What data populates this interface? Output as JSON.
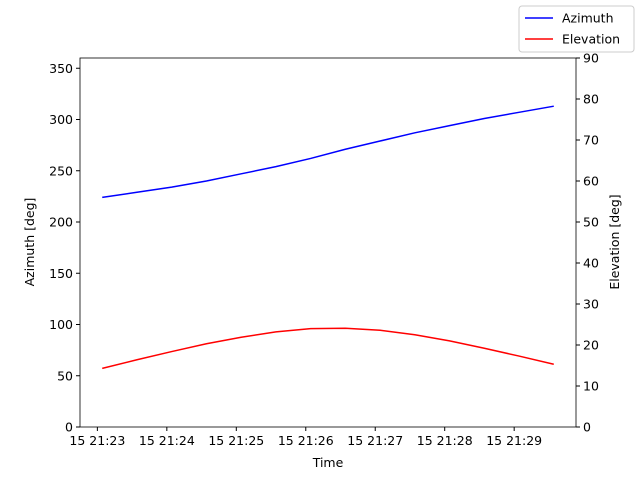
{
  "chart_data": {
    "type": "line",
    "x_label": "Time",
    "y_label": "Azimuth [deg]",
    "y2_label": "Elevation [deg]",
    "x": [
      23.07,
      23.57,
      24.07,
      24.57,
      25.07,
      25.57,
      26.07,
      26.57,
      27.07,
      27.57,
      28.07,
      28.57,
      29.07,
      29.57
    ],
    "series": [
      {
        "name": "Azimuth",
        "color": "#0000ff",
        "values": [
          224,
          229,
          234,
          240,
          247,
          254,
          262,
          271,
          279,
          287,
          294,
          301,
          307,
          313
        ]
      },
      {
        "name": "Elevation",
        "color": "#ff0000",
        "axis": "y2",
        "values": [
          14.3,
          16.4,
          18.4,
          20.3,
          21.9,
          23.2,
          24.0,
          24.1,
          23.6,
          22.5,
          21.0,
          19.2,
          17.3,
          15.3
        ]
      }
    ],
    "xlim": [
      22.75,
      29.89
    ],
    "xticks": [
      {
        "value": 23,
        "label": "15 21:23"
      },
      {
        "value": 24,
        "label": "15 21:24"
      },
      {
        "value": 25,
        "label": "15 21:25"
      },
      {
        "value": 26,
        "label": "15 21:26"
      },
      {
        "value": 27,
        "label": "15 21:27"
      },
      {
        "value": 28,
        "label": "15 21:28"
      },
      {
        "value": 29,
        "label": "15 21:29"
      }
    ],
    "ylim": [
      0,
      360
    ],
    "yticks": [
      0,
      50,
      100,
      150,
      200,
      250,
      300,
      350
    ],
    "y2lim": [
      0,
      90
    ],
    "y2ticks": [
      0,
      10,
      20,
      30,
      40,
      50,
      60,
      70,
      80,
      90
    ],
    "legend": "upper right"
  }
}
